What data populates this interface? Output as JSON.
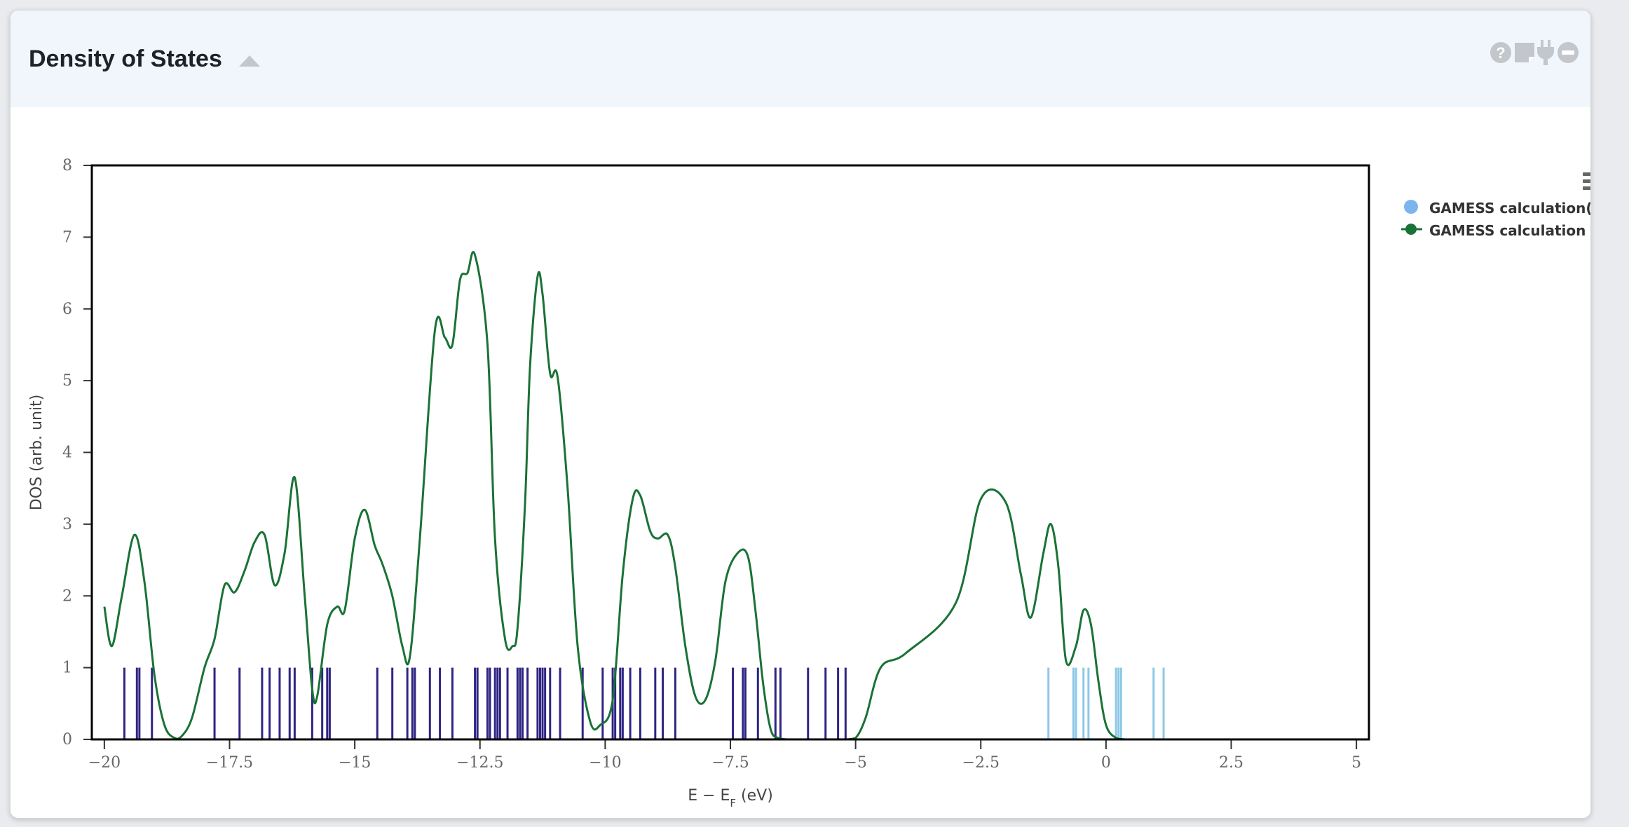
{
  "panel": {
    "title": "Density of States",
    "toggle_icon": "triangle-up-icon",
    "tools": [
      "help-icon",
      "note-icon",
      "plug-icon",
      "minus-circle-icon"
    ]
  },
  "chart_menu_icon": "hamburger-menu-icon",
  "chart_data": {
    "type": "line",
    "xlabel": "E − E",
    "xlabel_sub": "F",
    "xlabel_unit": " (eV)",
    "ylabel": "DOS (arb. unit)",
    "xlim": [
      -20.25,
      5.25
    ],
    "ylim": [
      0,
      8
    ],
    "x_ticks": [
      -20,
      -17.5,
      -15,
      -12.5,
      -10,
      -7.5,
      -5,
      -2.5,
      0,
      2.5,
      5
    ],
    "x_tick_labels": [
      "−20",
      "−17.5",
      "−15",
      "−12.5",
      "−10",
      "−7.5",
      "−5",
      "−2.5",
      "0",
      "2.5",
      "5"
    ],
    "y_ticks": [
      0,
      1,
      2,
      3,
      4,
      5,
      6,
      7,
      8
    ],
    "y_tick_labels": [
      "0",
      "1",
      "2",
      "3",
      "4",
      "5",
      "6",
      "7",
      "8"
    ],
    "legend_position": "right",
    "series": [
      {
        "name": "GAMESS calculation(mo)",
        "kind": "sticks",
        "stick_height": 1,
        "color_occupied": "#2e2584",
        "color_virtual": "#8ec8e8",
        "legend_color": "#7cb5ec",
        "occupied_levels": [
          -19.6,
          -19.35,
          -19.3,
          -19.05,
          -17.8,
          -17.3,
          -16.85,
          -16.7,
          -16.5,
          -16.3,
          -16.2,
          -15.85,
          -15.65,
          -15.55,
          -15.5,
          -14.55,
          -14.25,
          -13.95,
          -13.85,
          -13.8,
          -13.5,
          -13.3,
          -13.05,
          -12.6,
          -12.55,
          -12.35,
          -12.3,
          -12.2,
          -12.15,
          -12.1,
          -11.95,
          -11.75,
          -11.7,
          -11.65,
          -11.55,
          -11.35,
          -11.3,
          -11.25,
          -11.2,
          -11.1,
          -10.9,
          -10.45,
          -10.05,
          -9.85,
          -9.8,
          -9.7,
          -9.65,
          -9.5,
          -9.3,
          -9.0,
          -8.85,
          -8.6,
          -7.45,
          -7.25,
          -7.2,
          -6.95,
          -6.6,
          -6.5,
          -5.95,
          -5.6,
          -5.35,
          -5.2
        ],
        "virtual_levels": [
          -1.15,
          -0.65,
          -0.6,
          -0.45,
          -0.35,
          0.2,
          0.25,
          0.3,
          0.95,
          1.15
        ]
      },
      {
        "name": "GAMESS calculation",
        "kind": "line",
        "color": "#1a7236",
        "x": [
          -20,
          -19.85,
          -19.65,
          -19.4,
          -19.2,
          -19.0,
          -18.8,
          -18.6,
          -18.45,
          -18.25,
          -18.0,
          -17.8,
          -17.6,
          -17.4,
          -17.2,
          -17.0,
          -16.8,
          -16.6,
          -16.4,
          -16.2,
          -16.0,
          -15.85,
          -15.75,
          -15.55,
          -15.35,
          -15.2,
          -15.0,
          -14.8,
          -14.6,
          -14.45,
          -14.25,
          -14.05,
          -13.9,
          -13.7,
          -13.4,
          -13.2,
          -13.05,
          -12.9,
          -12.75,
          -12.6,
          -12.35,
          -12.2,
          -12.0,
          -11.85,
          -11.75,
          -11.6,
          -11.5,
          -11.35,
          -11.25,
          -11.1,
          -10.95,
          -10.75,
          -10.55,
          -10.3,
          -10.1,
          -9.85,
          -9.65,
          -9.45,
          -9.3,
          -9.1,
          -8.95,
          -8.75,
          -8.6,
          -8.4,
          -8.2,
          -8.0,
          -7.8,
          -7.6,
          -7.35,
          -7.15,
          -7.0,
          -6.85,
          -6.7,
          -6.55,
          -6.35,
          -6.2,
          -6.0,
          -5.8,
          -5.6,
          -5.4,
          -5.2,
          -5.0,
          -4.8,
          -4.5,
          -4.0,
          -3.0,
          -2.5,
          -2.0,
          -1.7,
          -1.5,
          -1.25,
          -1.1,
          -0.95,
          -0.8,
          -0.6,
          -0.45,
          -0.3,
          -0.15,
          0.0,
          0.2,
          0.4,
          0.55,
          0.7,
          0.85,
          1.0,
          1.2,
          1.4,
          1.6,
          1.8,
          2.0,
          2.5,
          5.0
        ],
        "y": [
          1.85,
          1.3,
          2.0,
          2.85,
          2.2,
          0.9,
          0.2,
          0.02,
          0.05,
          0.3,
          1.0,
          1.4,
          2.15,
          2.05,
          2.35,
          2.75,
          2.85,
          2.15,
          2.6,
          3.65,
          2.0,
          0.7,
          0.6,
          1.6,
          1.85,
          1.8,
          2.8,
          3.2,
          2.7,
          2.45,
          2.0,
          1.3,
          1.15,
          2.8,
          5.7,
          5.6,
          5.5,
          6.4,
          6.5,
          6.75,
          5.5,
          2.8,
          1.4,
          1.3,
          1.55,
          3.3,
          5.2,
          6.45,
          6.2,
          5.1,
          5.05,
          3.5,
          1.3,
          0.25,
          0.2,
          0.55,
          2.3,
          3.35,
          3.4,
          2.9,
          2.8,
          2.85,
          2.4,
          1.3,
          0.6,
          0.55,
          1.1,
          2.2,
          2.6,
          2.55,
          1.8,
          0.8,
          0.15,
          0.02,
          0.0,
          0.0,
          0.0,
          0.0,
          0.0,
          0.0,
          0.0,
          0.02,
          0.3,
          1.0,
          1.2,
          1.9,
          3.35,
          3.3,
          2.3,
          1.7,
          2.6,
          3.0,
          2.4,
          1.1,
          1.3,
          1.8,
          1.6,
          0.8,
          0.2,
          0.02,
          0.0,
          0.0,
          0.0,
          0.0,
          0.0,
          0.0,
          0.0,
          0.0,
          0.0,
          0.0,
          0.0,
          0.0
        ]
      }
    ]
  }
}
